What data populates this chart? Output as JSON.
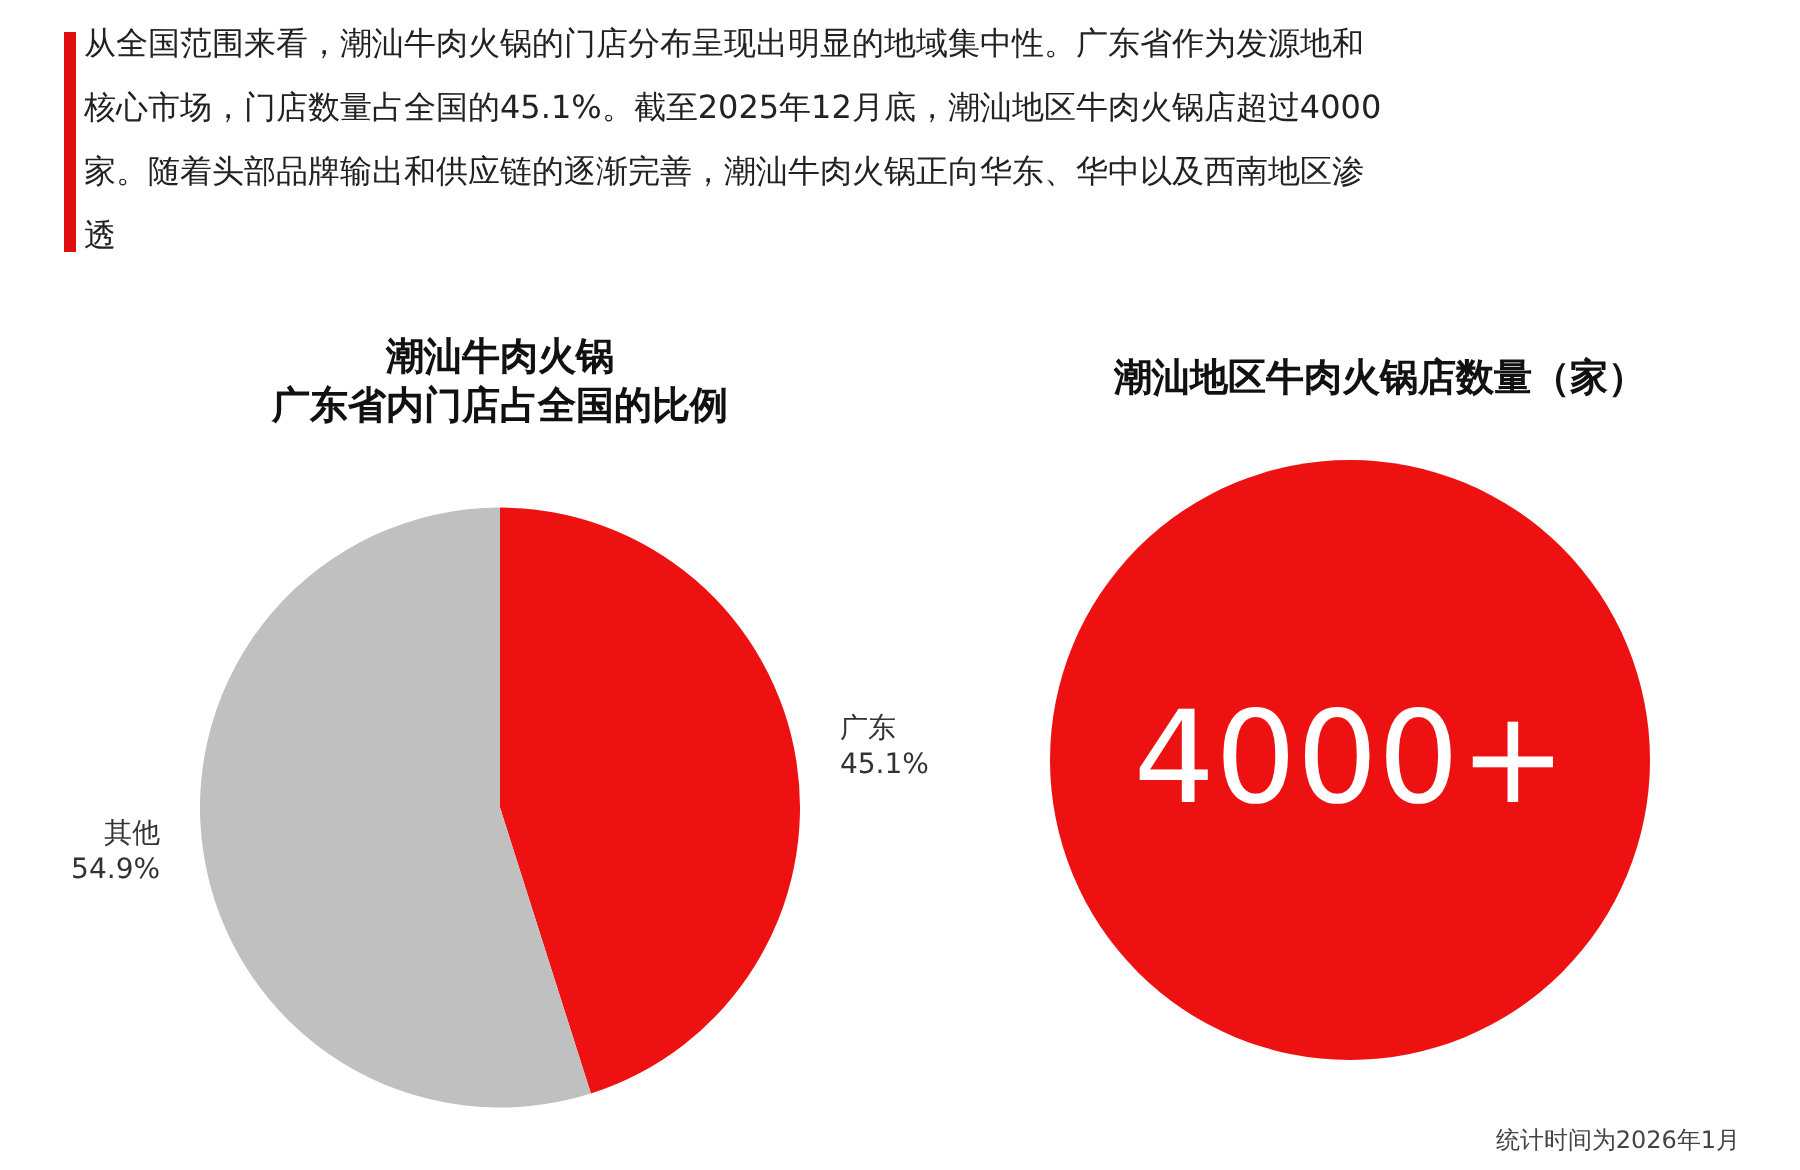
{
  "chart_data": [
    {
      "type": "other",
      "annotations": [
        "从全国范围来看，潮汕牛肉火锅的门店分布呈现出明显的地域集中性。广东省作为发源地和核心市场，门店数量占全国的45.1%。截至2025年12月底，潮汕地区牛肉火锅店超过4000家。随着头部品牌输出和供应链的逐渐完善，潮汕牛肉火锅正向华东、华中以及西南地区渗透"
      ]
    },
    {
      "type": "pie",
      "title": "潮汕牛肉火锅",
      "subtitle": "广东省内门店占全国的比例",
      "categories": [
        "广东",
        "其他"
      ],
      "values": [
        45.1,
        54.9
      ],
      "colors": [
        "#ee1111",
        "#c0c0c0"
      ],
      "value_labels": [
        "45.1%",
        "54.9%"
      ],
      "legend": false
    },
    {
      "type": "other",
      "title": "潮汕地区牛肉火锅店数量（家）",
      "annotations": [
        "4000+",
        "统计时间为2026年1月"
      ]
    }
  ]
}
